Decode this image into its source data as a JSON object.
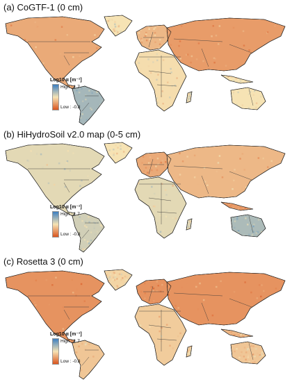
{
  "panels": [
    {
      "title": "(a)  CoGTF-1 (0 cm)",
      "scheme": "a",
      "legend": {
        "title": "Log10 α [m⁻¹]",
        "high": "High : 1.7",
        "low": "Low : -0.8"
      }
    },
    {
      "title": "(b)  HiHydroSoil v2.0 map (0-5 cm)",
      "scheme": "b",
      "legend": {
        "title": "Log10 α [m⁻¹]",
        "high": "High : 1.7",
        "low": "Low : -0.8"
      }
    },
    {
      "title": "(c)  Rosetta 3 (0 cm)",
      "scheme": "c",
      "legend": {
        "title": "Log10 α [m⁻¹]",
        "high": "High : 1.7",
        "low": "Low : -0.8"
      }
    }
  ],
  "colors": {
    "high": "#3d7fc1",
    "mid": "#f6e3b4",
    "low": "#d9541e"
  }
}
